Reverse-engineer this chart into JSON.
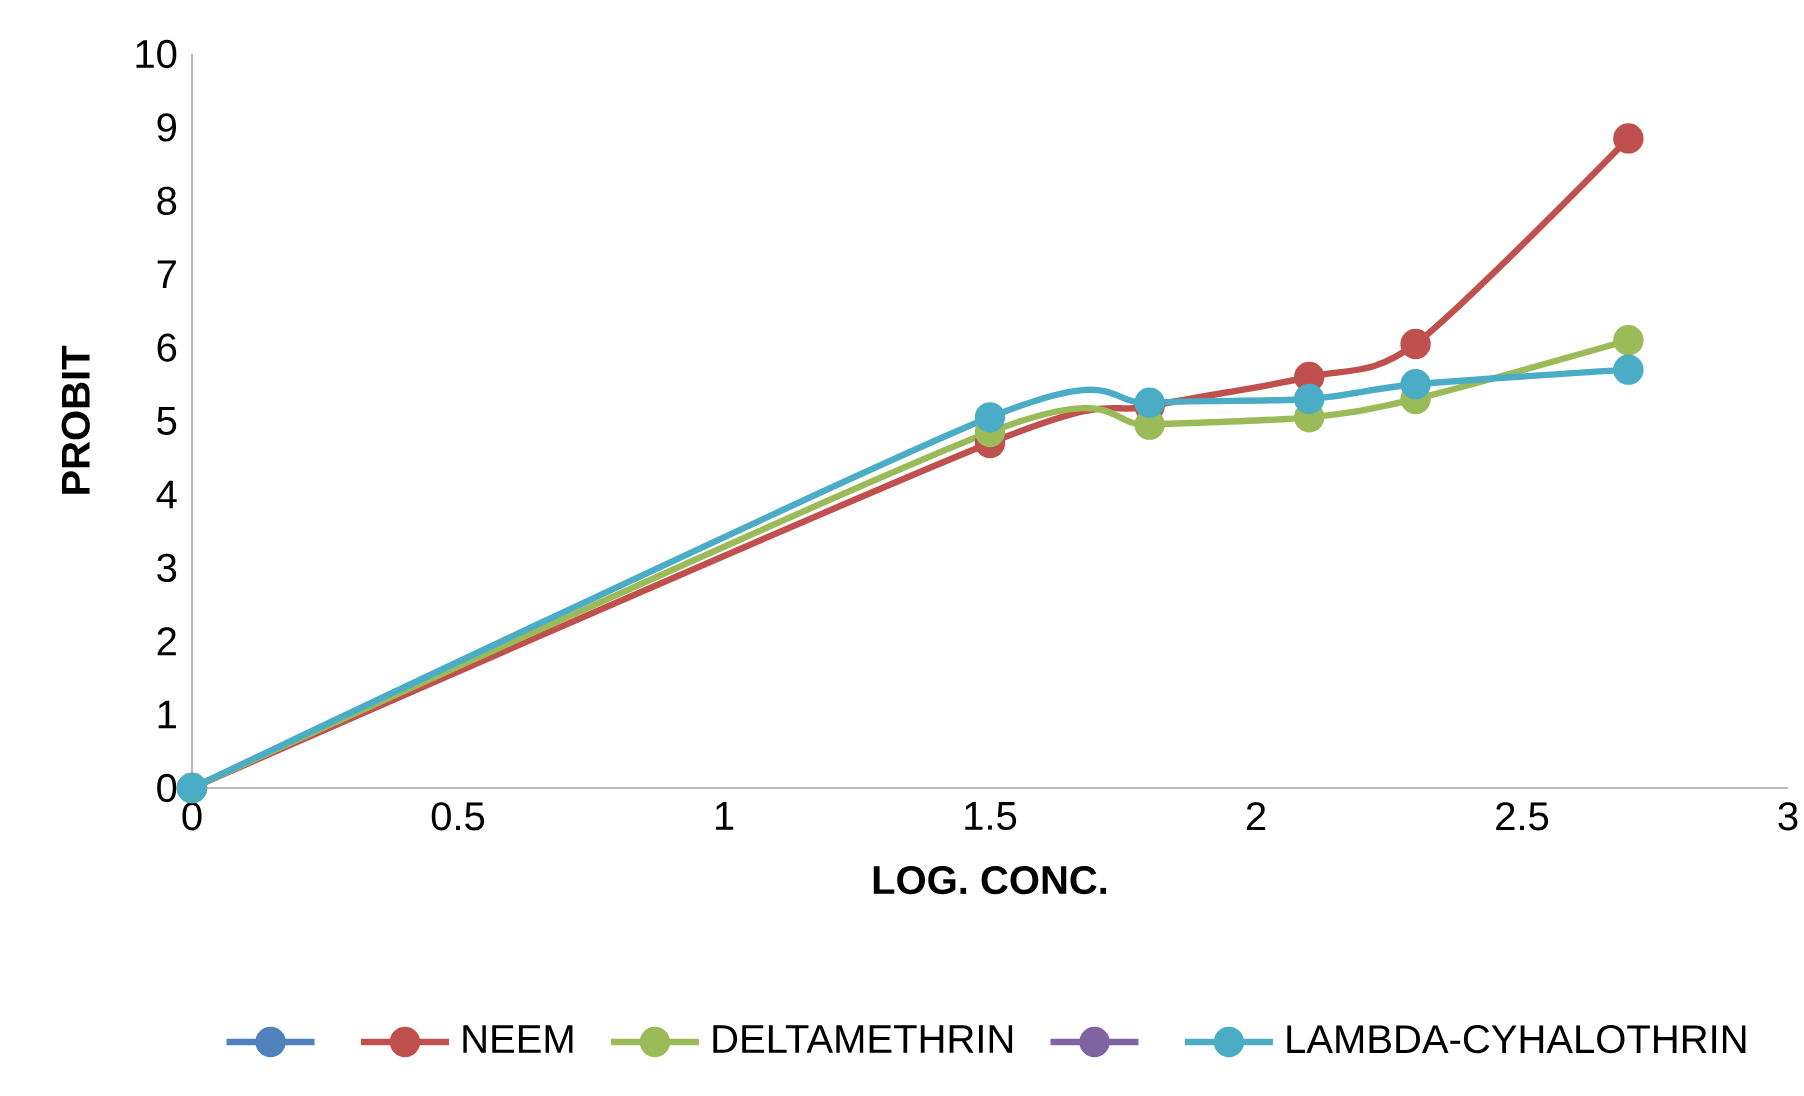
{
  "chart_data": {
    "type": "line",
    "xlabel": "LOG.  CONC.",
    "ylabel": "PROBIT",
    "x": [
      0,
      1.5,
      1.8,
      2.1,
      2.3,
      2.7
    ],
    "series": [
      {
        "color": "#4f81bd",
        "values": [
          null,
          null,
          null,
          null,
          null,
          null
        ]
      },
      {
        "name": "NEEM",
        "color": "#c0504d",
        "values": [
          0,
          4.7,
          5.2,
          5.6,
          6.05,
          8.85
        ]
      },
      {
        "name": "DELTAMETHRIN",
        "color": "#9bbb59",
        "values": [
          0,
          4.85,
          4.95,
          5.05,
          5.3,
          6.1
        ]
      },
      {
        "color": "#8064a2",
        "values": [
          null,
          null,
          null,
          null,
          null,
          null
        ]
      },
      {
        "name": "LAMBDA-CYHALOTHRIN",
        "color": "#4bacc6",
        "values": [
          0,
          5.05,
          5.25,
          5.3,
          5.5,
          5.7
        ]
      }
    ],
    "xlim": [
      0,
      3
    ],
    "ylim": [
      0,
      10
    ],
    "xticks": [
      0,
      0.5,
      1,
      1.5,
      2,
      2.5,
      3
    ],
    "yticks": [
      0,
      1,
      2,
      3,
      4,
      5,
      6,
      7,
      8,
      9,
      10
    ],
    "marker": "circle",
    "line_style": "solid",
    "legend": "bottom",
    "grid": false
  }
}
